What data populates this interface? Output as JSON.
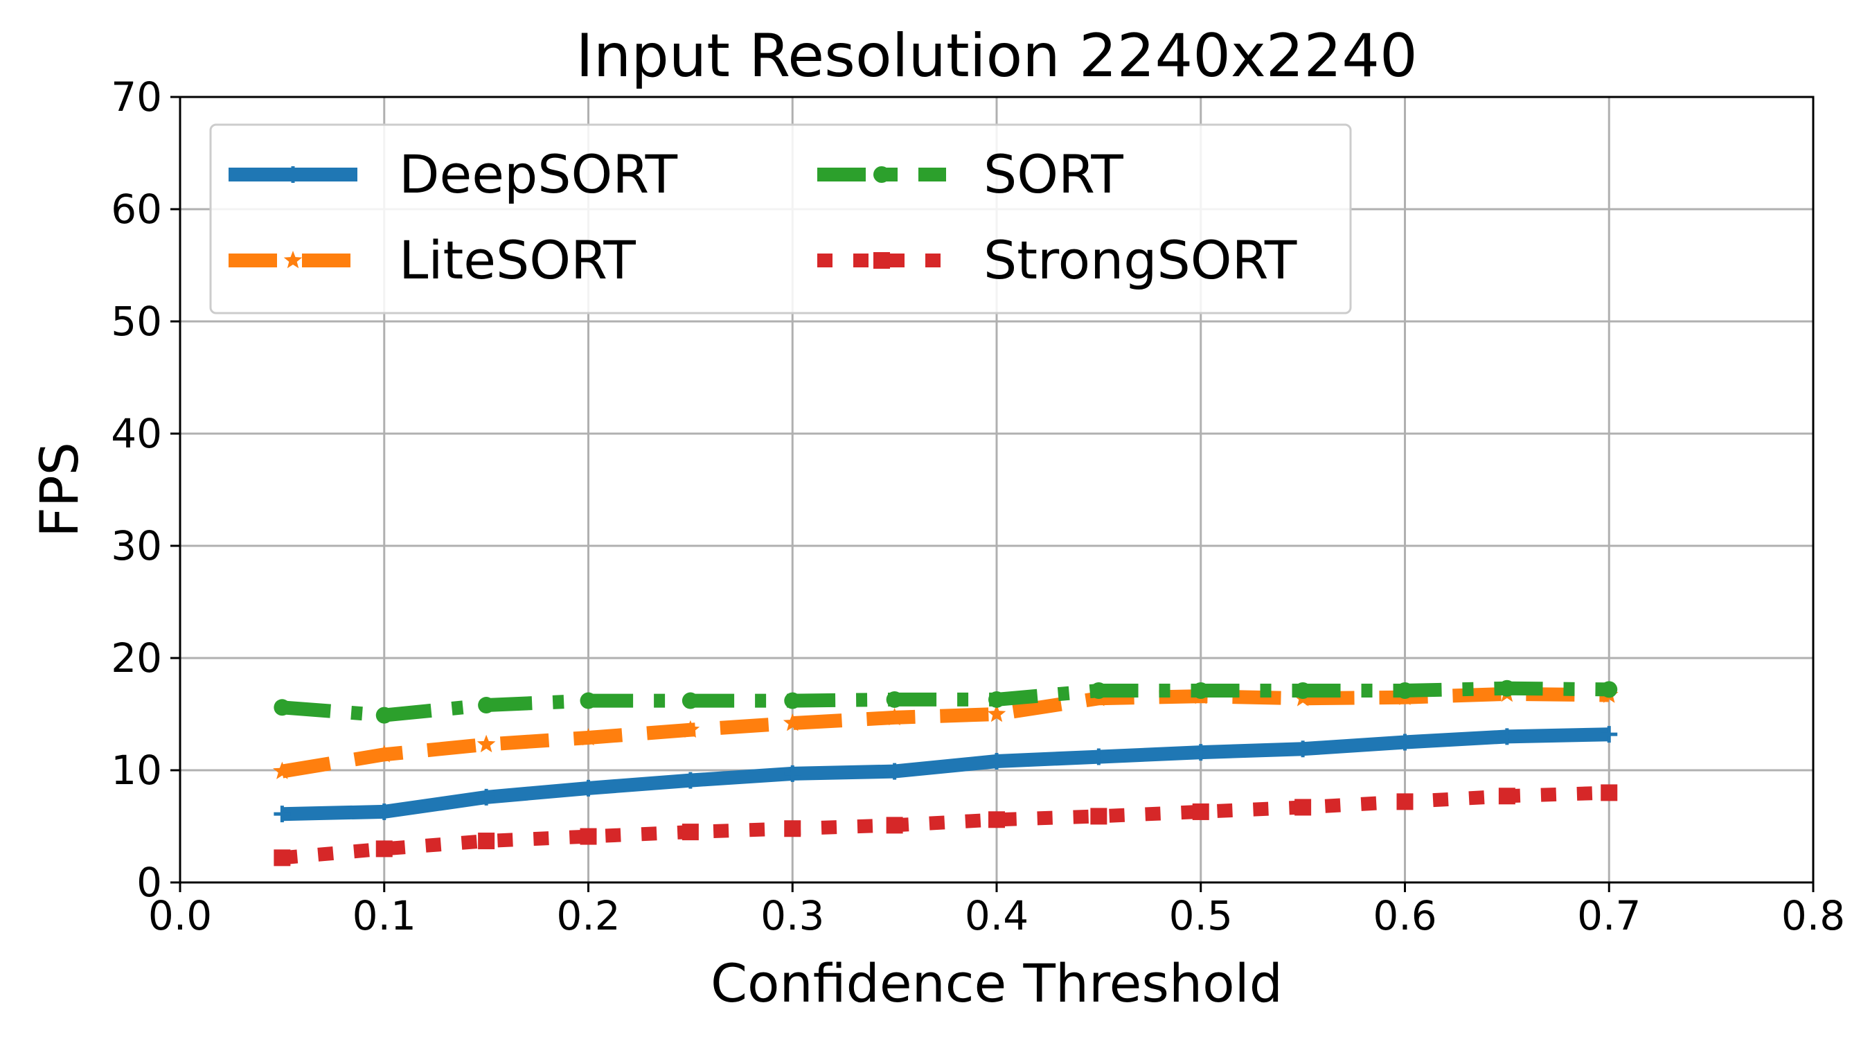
{
  "chart_data": {
    "type": "line",
    "title": "Input Resolution 2240x2240",
    "xlabel": "Confidence Threshold",
    "ylabel": "FPS",
    "xlim": [
      0.0,
      0.8
    ],
    "ylim": [
      0,
      70
    ],
    "xticks": [
      "0.0",
      "0.1",
      "0.2",
      "0.3",
      "0.4",
      "0.5",
      "0.6",
      "0.7",
      "0.8"
    ],
    "yticks": [
      "0",
      "10",
      "20",
      "30",
      "40",
      "50",
      "60",
      "70"
    ],
    "grid": true,
    "legend_position": "upper-left",
    "x": [
      0.05,
      0.1,
      0.15,
      0.2,
      0.25,
      0.3,
      0.35,
      0.4,
      0.45,
      0.5,
      0.55,
      0.6,
      0.65,
      0.7
    ],
    "series": [
      {
        "name": "DeepSORT",
        "color": "#1f77b4",
        "style": "solid",
        "marker": "plus",
        "values": [
          6.1,
          6.3,
          7.6,
          8.4,
          9.1,
          9.7,
          9.9,
          10.8,
          11.2,
          11.6,
          11.9,
          12.5,
          13.0,
          13.2
        ]
      },
      {
        "name": "LiteSORT",
        "color": "#ff7f0e",
        "style": "dashed",
        "marker": "star",
        "values": [
          9.9,
          11.4,
          12.3,
          12.9,
          13.6,
          14.2,
          14.7,
          15.0,
          16.4,
          16.6,
          16.4,
          16.5,
          16.8,
          16.7
        ]
      },
      {
        "name": "SORT",
        "color": "#2ca02c",
        "style": "dashdot",
        "marker": "circle",
        "values": [
          15.6,
          14.9,
          15.8,
          16.2,
          16.2,
          16.2,
          16.3,
          16.3,
          17.1,
          17.1,
          17.1,
          17.1,
          17.3,
          17.2
        ]
      },
      {
        "name": "StrongSORT",
        "color": "#d62728",
        "style": "dotted",
        "marker": "square",
        "values": [
          2.2,
          3.0,
          3.7,
          4.1,
          4.5,
          4.8,
          5.1,
          5.6,
          5.9,
          6.3,
          6.7,
          7.2,
          7.7,
          8.0
        ]
      }
    ]
  }
}
